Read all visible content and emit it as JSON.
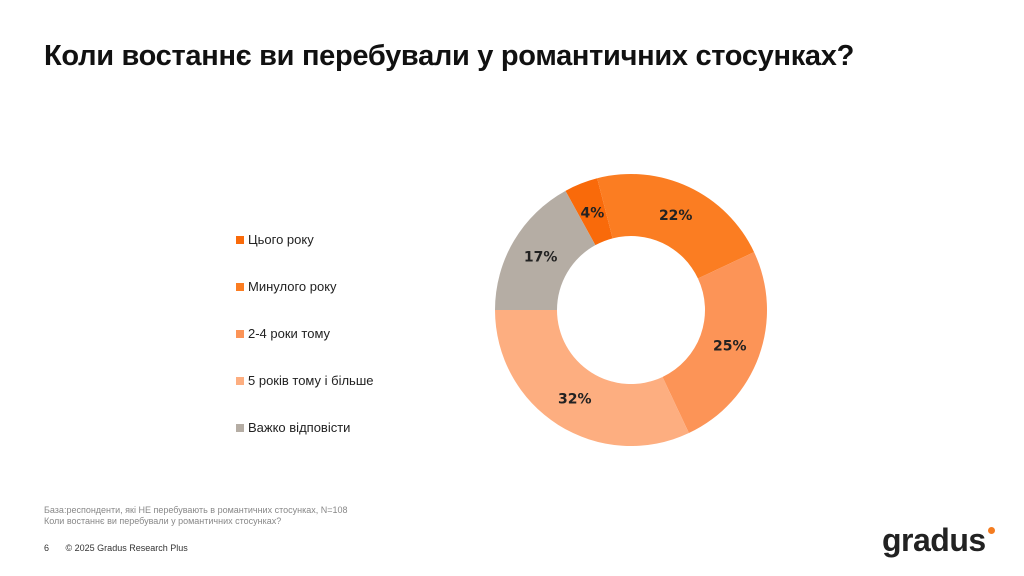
{
  "title": "Коли востаннє ви перебували у романтичних стосунках?",
  "chart_data": {
    "type": "pie",
    "donut": true,
    "categories": [
      "Цього року",
      "Минулого року",
      "2-4 роки тому",
      "5 років тому і більше",
      "Важко відповісти"
    ],
    "values": [
      4,
      22,
      25,
      32,
      17
    ],
    "labels": [
      "4%",
      "22%",
      "25%",
      "32%",
      "17%"
    ],
    "colors": [
      "#f96a0a",
      "#fb7d22",
      "#fc9457",
      "#fdae80",
      "#b5ada4"
    ],
    "legend": "left"
  },
  "footnote": {
    "base": "База:респонденти, які НЕ перебувають в романтичних стосунках, N=108",
    "question": "Коли востаннє ви перебували у романтичних стосунках?"
  },
  "footer": {
    "page": "6",
    "copyright": "© 2025 Gradus Research Plus"
  },
  "logo": "gradus"
}
